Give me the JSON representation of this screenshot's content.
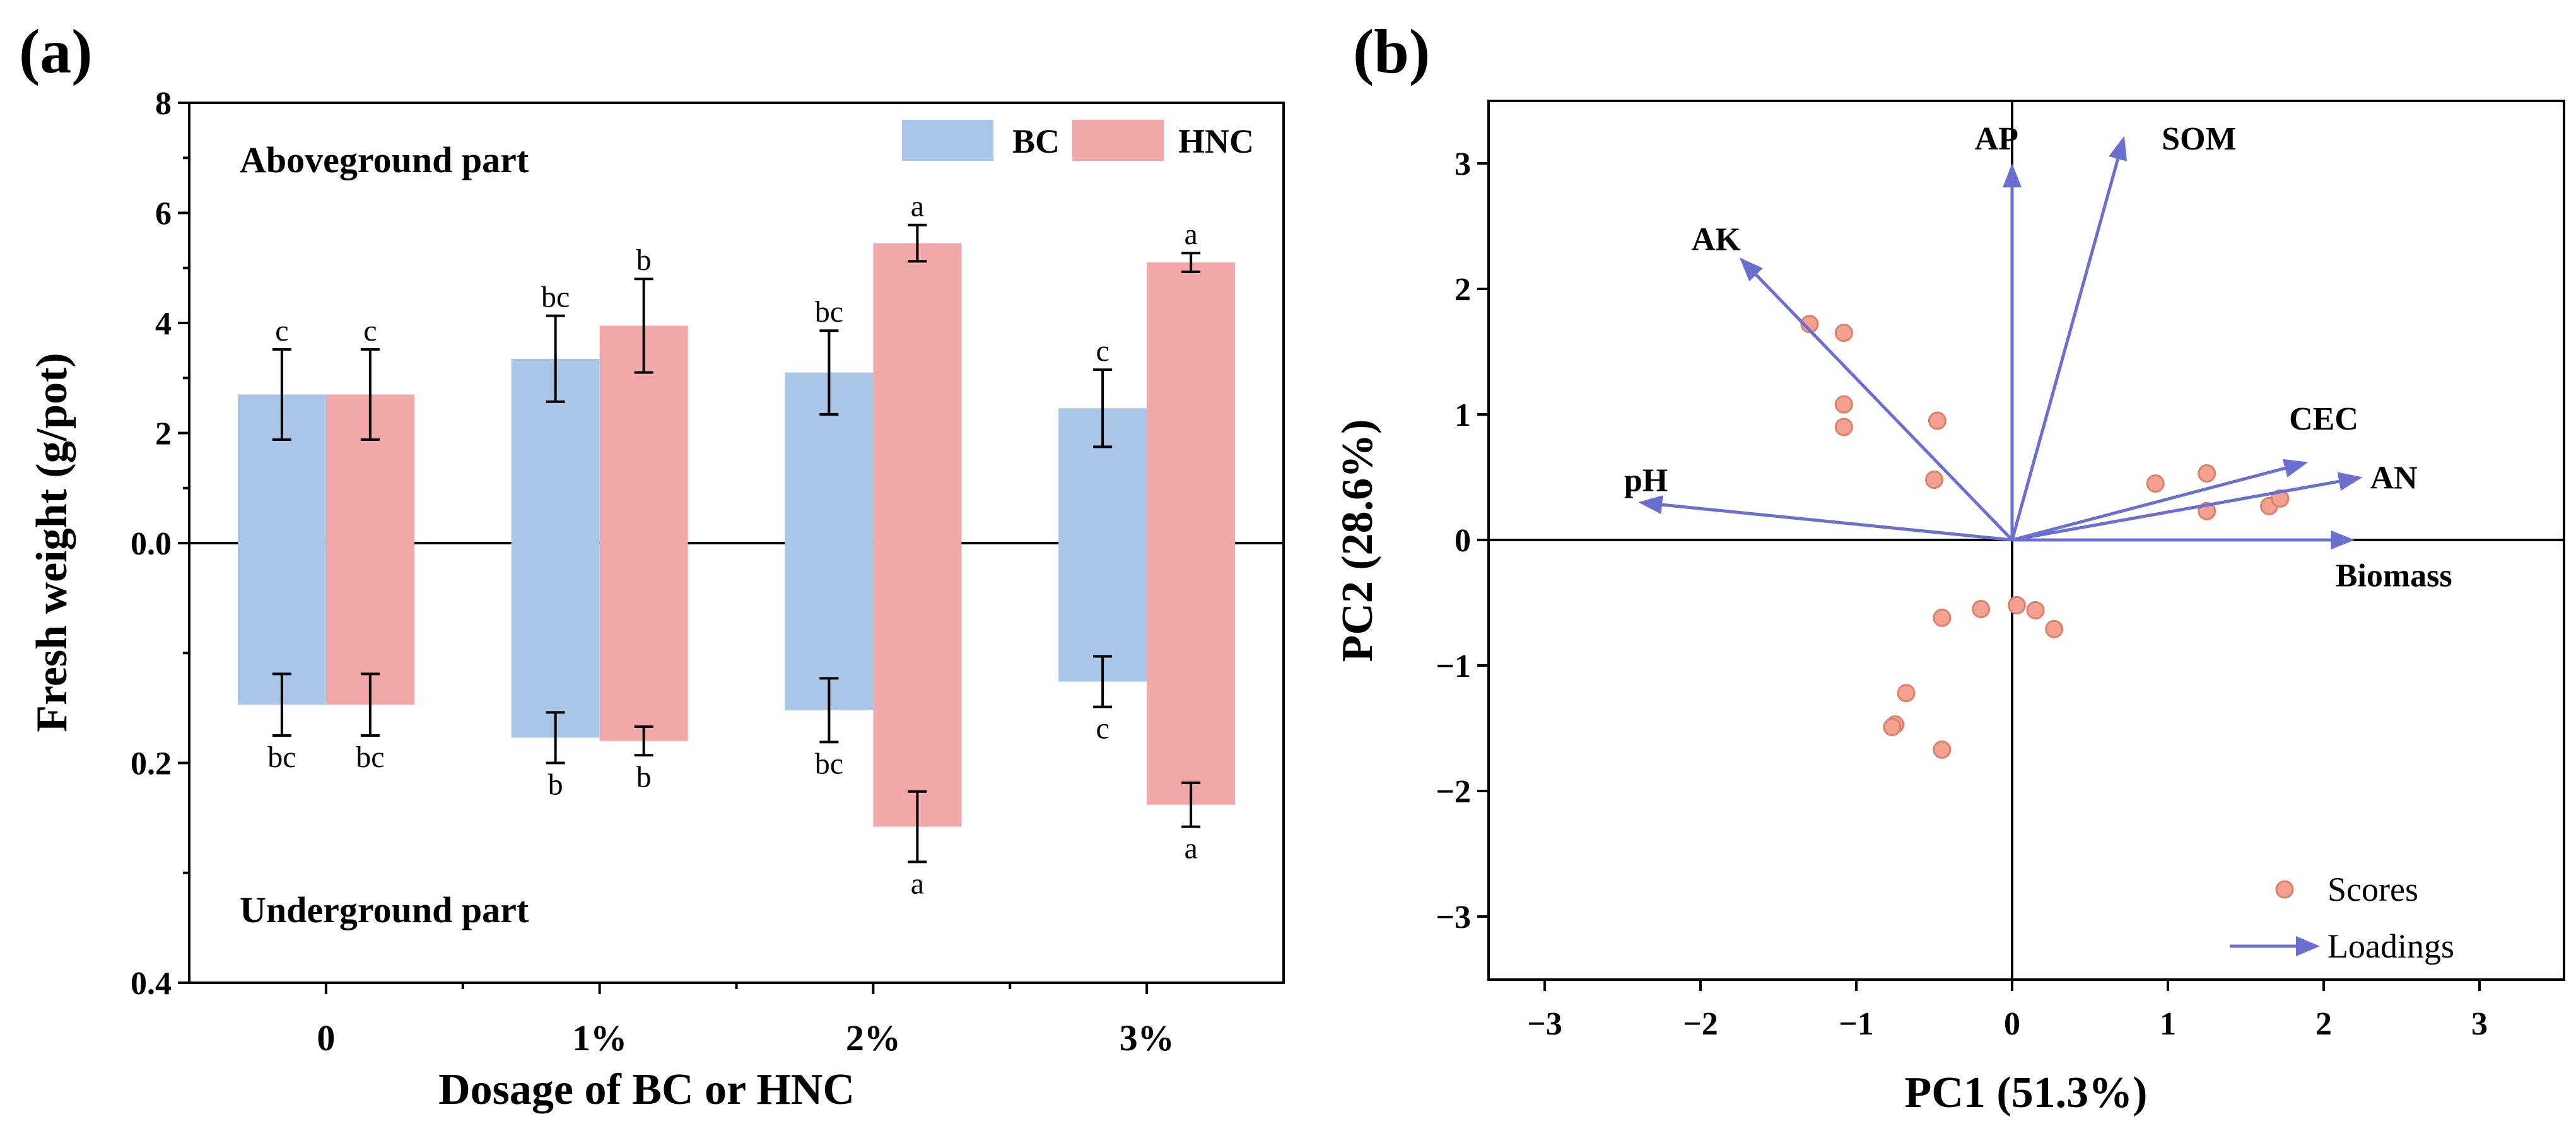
{
  "chart_data": [
    {
      "panel": "(a)",
      "type": "bar",
      "xlabel": "Dosage of BC or HNC",
      "ylabel": "Fresh weight (g/pot)",
      "categories": [
        "0",
        "1%",
        "2%",
        "3%"
      ],
      "top_axis": {
        "ylim": [
          0,
          8
        ],
        "ticks": [
          "0.0",
          "2",
          "4",
          "6",
          "8"
        ],
        "label": "Aboveground part"
      },
      "bottom_axis": {
        "ylim": [
          0,
          0.4
        ],
        "ticks": [
          "0.2",
          "0.4"
        ],
        "label": "Underground part"
      },
      "legend": {
        "position": "top-right",
        "entries": [
          "BC",
          "HNC"
        ]
      },
      "series": [
        {
          "name": "BC",
          "color": "#a9c6e8",
          "above_values": [
            2.7,
            3.35,
            3.1,
            2.45
          ],
          "above_errors": [
            0.82,
            0.78,
            0.76,
            0.7
          ],
          "above_sig": [
            "c",
            "bc",
            "bc",
            "c"
          ],
          "below_values": [
            0.147,
            0.177,
            0.152,
            0.126
          ],
          "below_errors": [
            0.028,
            0.023,
            0.029,
            0.023
          ],
          "below_sig": [
            "bc",
            "b",
            "bc",
            "c"
          ]
        },
        {
          "name": "HNC",
          "color": "#f2a7a9",
          "above_values": [
            2.7,
            3.95,
            5.45,
            5.1
          ],
          "above_errors": [
            0.82,
            0.85,
            0.33,
            0.17
          ],
          "above_sig": [
            "c",
            "b",
            "a",
            "a"
          ],
          "below_values": [
            0.147,
            0.18,
            0.258,
            0.238
          ],
          "below_errors": [
            0.028,
            0.013,
            0.032,
            0.02
          ],
          "below_sig": [
            "bc",
            "b",
            "a",
            "a"
          ]
        }
      ]
    },
    {
      "panel": "(b)",
      "type": "scatter",
      "xlabel": "PC1 (51.3%)",
      "ylabel": "PC2 (28.6%)",
      "xlim": [
        -3.5,
        3.5
      ],
      "ylim": [
        -3.5,
        3.5
      ],
      "xticks": [
        -3,
        -2,
        -1,
        0,
        1,
        2,
        3
      ],
      "yticks": [
        -3,
        -2,
        -1,
        0,
        1,
        2,
        3
      ],
      "tick_text": {
        "-3": "−3",
        "-2": "−2",
        "-1": "−1",
        "0": "0",
        "1": "1",
        "2": "2",
        "3": "3"
      },
      "legend": {
        "position": "bottom-right",
        "entries": [
          "Scores",
          "Loadings"
        ]
      },
      "scores_color": "#f4a18f",
      "loadings_color": "#6b6fd0",
      "scores": [
        [
          -1.3,
          1.72
        ],
        [
          -1.08,
          1.65
        ],
        [
          -1.08,
          1.08
        ],
        [
          -1.08,
          0.9
        ],
        [
          -0.48,
          0.95
        ],
        [
          -0.5,
          0.48
        ],
        [
          0.92,
          0.45
        ],
        [
          1.25,
          0.53
        ],
        [
          1.25,
          0.23
        ],
        [
          1.65,
          0.27
        ],
        [
          1.72,
          0.33
        ],
        [
          -0.2,
          -0.55
        ],
        [
          -0.45,
          -0.62
        ],
        [
          0.03,
          -0.52
        ],
        [
          0.15,
          -0.56
        ],
        [
          0.27,
          -0.71
        ],
        [
          -0.68,
          -1.22
        ],
        [
          -0.75,
          -1.47
        ],
        [
          -0.77,
          -1.49
        ],
        [
          -0.45,
          -1.67
        ]
      ],
      "loadings": [
        {
          "name": "AP",
          "x": 0.0,
          "y": 3.0,
          "label_pos": [
            -0.1,
            3.2
          ]
        },
        {
          "name": "SOM",
          "x": 0.72,
          "y": 3.22,
          "label_pos": [
            1.2,
            3.2
          ]
        },
        {
          "name": "AK",
          "x": -1.75,
          "y": 2.25,
          "label_pos": [
            -1.9,
            2.4
          ]
        },
        {
          "name": "CEC",
          "x": 1.9,
          "y": 0.62,
          "label_pos": [
            2.0,
            0.97
          ]
        },
        {
          "name": "AN",
          "x": 2.25,
          "y": 0.5,
          "label_pos": [
            2.45,
            0.5
          ]
        },
        {
          "name": "pH",
          "x": -2.4,
          "y": 0.3,
          "label_pos": [
            -2.35,
            0.48
          ]
        },
        {
          "name": "Biomass",
          "x": 2.2,
          "y": 0.0,
          "label_pos": [
            2.45,
            -0.28
          ]
        }
      ]
    }
  ]
}
